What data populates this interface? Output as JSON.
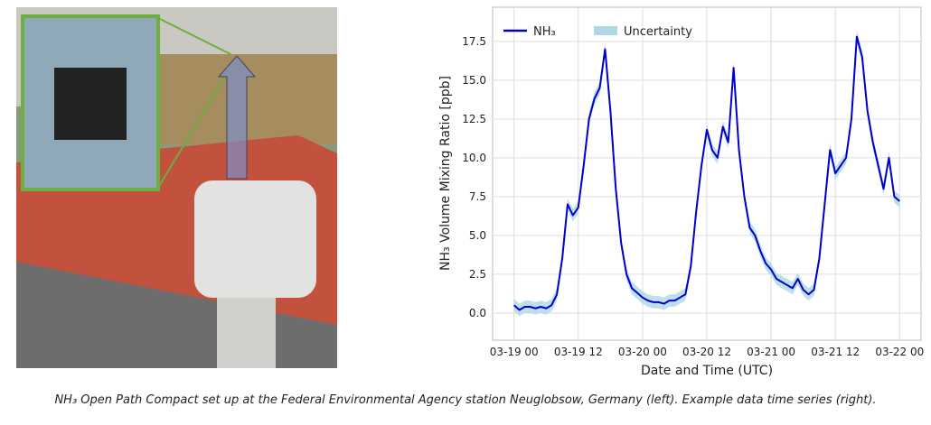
{
  "caption": "NH₃ Open Path Compact set up at the Federal Environmental Agency station Neuglobsow, Germany (left). Example data time series (right).",
  "chart_data": {
    "type": "line",
    "x_label": "Date and Time (UTC)",
    "y_label": "NH₃ Volume Mixing Ratio [ppb]",
    "x": [
      "03-19 00",
      "03-19 01",
      "03-19 02",
      "03-19 03",
      "03-19 04",
      "03-19 05",
      "03-19 06",
      "03-19 07",
      "03-19 08",
      "03-19 09",
      "03-19 10",
      "03-19 11",
      "03-19 12",
      "03-19 13",
      "03-19 14",
      "03-19 15",
      "03-19 16",
      "03-19 17",
      "03-19 18",
      "03-19 19",
      "03-19 20",
      "03-19 21",
      "03-19 22",
      "03-19 23",
      "03-20 00",
      "03-20 01",
      "03-20 02",
      "03-20 03",
      "03-20 04",
      "03-20 05",
      "03-20 06",
      "03-20 07",
      "03-20 08",
      "03-20 09",
      "03-20 10",
      "03-20 11",
      "03-20 12",
      "03-20 13",
      "03-20 14",
      "03-20 15",
      "03-20 16",
      "03-20 17",
      "03-20 18",
      "03-20 19",
      "03-20 20",
      "03-20 21",
      "03-20 22",
      "03-20 23",
      "03-21 00",
      "03-21 01",
      "03-21 02",
      "03-21 03",
      "03-21 04",
      "03-21 05",
      "03-21 06",
      "03-21 07",
      "03-21 08",
      "03-21 09",
      "03-21 10",
      "03-21 11",
      "03-21 12",
      "03-21 13",
      "03-21 14",
      "03-21 15",
      "03-21 16",
      "03-21 17",
      "03-21 18",
      "03-21 19",
      "03-21 20",
      "03-21 21",
      "03-21 22",
      "03-21 23",
      "03-22 00"
    ],
    "series": [
      {
        "name": "NH₃",
        "color": "#0000cc",
        "values": [
          0.5,
          0.2,
          0.4,
          0.4,
          0.3,
          0.4,
          0.3,
          0.5,
          1.2,
          3.5,
          7.0,
          6.3,
          6.8,
          9.5,
          12.5,
          13.8,
          14.5,
          17.0,
          13.0,
          8.0,
          4.5,
          2.5,
          1.6,
          1.3,
          1.0,
          0.8,
          0.7,
          0.7,
          0.6,
          0.8,
          0.8,
          1.0,
          1.2,
          3.0,
          6.5,
          9.5,
          11.8,
          10.5,
          10.0,
          12.0,
          11.0,
          15.8,
          10.5,
          7.5,
          5.5,
          5.0,
          4.0,
          3.2,
          2.8,
          2.2,
          2.0,
          1.8,
          1.6,
          2.2,
          1.5,
          1.2,
          1.5,
          3.5,
          7.0,
          10.5,
          9.0,
          9.5,
          10.0,
          12.5,
          17.8,
          16.5,
          13.0,
          11.0,
          9.5,
          8.0,
          10.0,
          7.5,
          7.2
        ]
      },
      {
        "name": "Uncertainty",
        "color": "#add8e6",
        "error": 0.4
      }
    ],
    "xlim": [
      "03-18 20",
      "03-22 04"
    ],
    "xticks": [
      "03-19 00",
      "03-19 12",
      "03-20 00",
      "03-20 12",
      "03-21 00",
      "03-21 12",
      "03-22 00"
    ],
    "ylim": [
      -1.75,
      19.7
    ],
    "yticks": [
      {
        "value": 0,
        "label": "0.0"
      },
      {
        "value": 2.5,
        "label": "2.5"
      },
      {
        "value": 5,
        "label": "5.0"
      },
      {
        "value": 7.5,
        "label": "7.5"
      },
      {
        "value": 10,
        "label": "10.0"
      },
      {
        "value": 12.5,
        "label": "12.5"
      },
      {
        "value": 15,
        "label": "15.0"
      },
      {
        "value": 17.5,
        "label": "17.5"
      }
    ],
    "grid": true,
    "legend": "upper left"
  }
}
